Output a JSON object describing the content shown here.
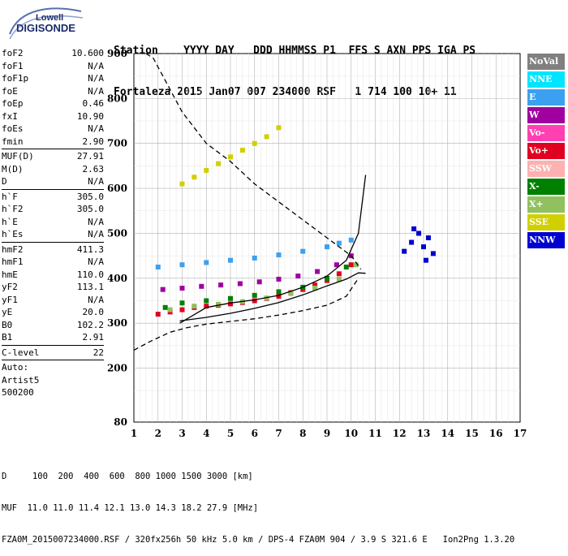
{
  "logo": {
    "line1": "Lowell",
    "line2": "DIGISONDE"
  },
  "header": {
    "labels": "Station    YYYY DAY   DDD HHMMSS P1  FFS S AXN PPS IGA PS",
    "values": "Fortaleza 2015 Jan07 007 234000 RSF   1 714 100 10+ 11"
  },
  "params": [
    {
      "name": "foF2",
      "value": "10.600"
    },
    {
      "name": "foF1",
      "value": "N/A"
    },
    {
      "name": "foF1p",
      "value": "N/A"
    },
    {
      "name": "foE",
      "value": "N/A"
    },
    {
      "name": "foEp",
      "value": "0.46"
    },
    {
      "name": "fxI",
      "value": "10.90"
    },
    {
      "name": "foEs",
      "value": "N/A"
    },
    {
      "name": "fmin",
      "value": "2.90"
    },
    {
      "sep": true
    },
    {
      "name": "MUF(D)",
      "value": "27.91"
    },
    {
      "name": "M(D)",
      "value": "2.63"
    },
    {
      "name": "D",
      "value": "N/A"
    },
    {
      "sep": true
    },
    {
      "name": "h`F",
      "value": "305.0"
    },
    {
      "name": "h`F2",
      "value": "305.0"
    },
    {
      "name": "h`E",
      "value": "N/A"
    },
    {
      "name": "h`Es",
      "value": "N/A"
    },
    {
      "sep": true
    },
    {
      "name": "hmF2",
      "value": "411.3"
    },
    {
      "name": "hmF1",
      "value": "N/A"
    },
    {
      "name": "hmE",
      "value": "110.0"
    },
    {
      "name": "yF2",
      "value": "113.1"
    },
    {
      "name": "yF1",
      "value": "N/A"
    },
    {
      "name": "yE",
      "value": "20.0"
    },
    {
      "name": "B0",
      "value": "102.2"
    },
    {
      "name": "B1",
      "value": "2.91"
    },
    {
      "sep": true
    },
    {
      "name": "C-level",
      "value": "22"
    },
    {
      "sep": true
    },
    {
      "name": "Auto:",
      "value": ""
    },
    {
      "name": "Artist5",
      "value": ""
    },
    {
      "name": "500200",
      "value": ""
    }
  ],
  "legend": [
    {
      "label": "NoVal",
      "color": "#808080"
    },
    {
      "label": "NNE",
      "color": "#00e5ff"
    },
    {
      "label": "E",
      "color": "#3ca0f0"
    },
    {
      "label": "W",
      "color": "#a000a0"
    },
    {
      "label": "Vo-",
      "color": "#ff40b0"
    },
    {
      "label": "Vo+",
      "color": "#e00020"
    },
    {
      "label": "SSW",
      "color": "#ffb0b0"
    },
    {
      "label": "X-",
      "color": "#008000"
    },
    {
      "label": "X+",
      "color": "#90c060"
    },
    {
      "label": "SSE",
      "color": "#d0d000"
    },
    {
      "label": "NNW",
      "color": "#0000d0"
    }
  ],
  "footer": {
    "dist_line": "D     100  200  400  600  800 1000 1500 3000 [km]",
    "muf_line": "MUF  11.0 11.0 11.4 12.1 13.0 14.3 18.2 27.9 [MHz]",
    "file_line": "FZA0M_2015007234000.RSF / 320fx256h 50 kHz 5.0 km / DPS-4 FZA0M 904 / 3.9 S 321.6 E   Ion2Png 1.3.20"
  },
  "chart_data": {
    "type": "scatter",
    "x_ticks": [
      1,
      2,
      3,
      4,
      5,
      6,
      7,
      8,
      9,
      10,
      11,
      12,
      13,
      14,
      15,
      16,
      17
    ],
    "y_ticks": [
      80,
      200,
      300,
      400,
      500,
      600,
      700,
      800,
      900
    ],
    "xlim": [
      1,
      17
    ],
    "ylim": [
      80,
      900
    ],
    "xlabel": "",
    "ylabel": "",
    "grid": true,
    "series": [
      {
        "name": "Vo+",
        "color": "#e00020",
        "x": [
          2.0,
          2.5,
          3.0,
          3.5,
          4.0,
          4.5,
          5.0,
          5.5,
          6.0,
          6.5,
          7.0,
          7.5,
          8.0,
          8.5,
          9.0,
          9.5,
          10.0
        ],
        "y": [
          320,
          325,
          330,
          335,
          338,
          340,
          343,
          346,
          350,
          355,
          360,
          368,
          375,
          385,
          395,
          410,
          430
        ]
      },
      {
        "name": "X-",
        "color": "#008000",
        "x": [
          2.3,
          3.0,
          4.0,
          5.0,
          6.0,
          7.0,
          8.0,
          9.0,
          9.8
        ],
        "y": [
          335,
          345,
          350,
          355,
          362,
          370,
          380,
          400,
          425
        ]
      },
      {
        "name": "X+",
        "color": "#90c060",
        "x": [
          2.5,
          3.5,
          4.5,
          5.5,
          6.5,
          7.5,
          8.5,
          9.5,
          10.2
        ],
        "y": [
          330,
          338,
          342,
          348,
          356,
          366,
          378,
          398,
          430
        ]
      },
      {
        "name": "W",
        "color": "#a000a0",
        "x": [
          2.2,
          3.0,
          3.8,
          4.6,
          5.4,
          6.2,
          7.0,
          7.8,
          8.6,
          9.4,
          10.0
        ],
        "y": [
          375,
          378,
          382,
          385,
          388,
          392,
          398,
          405,
          415,
          430,
          450
        ]
      },
      {
        "name": "E",
        "color": "#3ca0f0",
        "x": [
          2.0,
          3.0,
          4.0,
          5.0,
          6.0,
          7.0,
          8.0,
          9.0,
          9.5,
          10.0
        ],
        "y": [
          425,
          430,
          435,
          440,
          445,
          452,
          460,
          470,
          478,
          485
        ]
      },
      {
        "name": "SSE",
        "color": "#d0d000",
        "x": [
          3.0,
          3.5,
          4.0,
          4.5,
          5.0,
          5.5,
          6.0,
          6.5,
          7.0
        ],
        "y": [
          610,
          625,
          640,
          655,
          670,
          685,
          700,
          715,
          735
        ]
      },
      {
        "name": "NNW",
        "color": "#0000d0",
        "x": [
          12.2,
          12.5,
          12.8,
          13.0,
          13.2,
          13.4,
          12.6,
          13.1
        ],
        "y": [
          460,
          480,
          500,
          470,
          490,
          455,
          510,
          440
        ]
      }
    ],
    "curves": [
      {
        "name": "profile",
        "style": "solid",
        "x": [
          2.9,
          4.0,
          5.0,
          6.0,
          7.0,
          8.0,
          9.0,
          9.8,
          10.3,
          10.6
        ],
        "y": [
          305,
          313,
          322,
          333,
          346,
          363,
          383,
          398,
          412,
          411
        ]
      },
      {
        "name": "trace",
        "style": "solid",
        "x": [
          2.9,
          4.0,
          5.0,
          6.0,
          7.0,
          8.0,
          9.0,
          9.8,
          10.3,
          10.6
        ],
        "y": [
          300,
          335,
          345,
          352,
          362,
          380,
          405,
          440,
          500,
          630
        ]
      },
      {
        "name": "muf-left",
        "style": "dashed",
        "x": [
          1.0,
          1.7,
          2.5,
          3.2,
          4.0,
          5.0,
          6.0,
          7.0,
          8.0,
          9.0,
          9.8,
          10.3
        ],
        "y": [
          240,
          260,
          280,
          290,
          298,
          304,
          310,
          318,
          328,
          340,
          360,
          400
        ]
      },
      {
        "name": "muf-top",
        "style": "dashed",
        "x": [
          1.5,
          1.8,
          2.3,
          3.0,
          4.0,
          5.0,
          6.0,
          7.0,
          8.0,
          9.0,
          10.0,
          10.4
        ],
        "y": [
          900,
          890,
          840,
          770,
          700,
          660,
          610,
          570,
          530,
          490,
          450,
          420
        ]
      }
    ]
  }
}
